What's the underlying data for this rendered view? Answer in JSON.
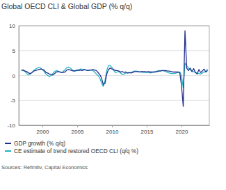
{
  "chart_data": {
    "type": "line",
    "title": "Global OECD CLI & Global GDP (% q/q)",
    "source": "Sources: Refinitiv, Capital Economics",
    "x": [
      1997,
      1997.25,
      1997.5,
      1997.75,
      1998,
      1998.25,
      1998.5,
      1998.75,
      1999,
      1999.25,
      1999.5,
      1999.75,
      2000,
      2000.25,
      2000.5,
      2000.75,
      2001,
      2001.25,
      2001.5,
      2001.75,
      2002,
      2002.25,
      2002.5,
      2002.75,
      2003,
      2003.25,
      2003.5,
      2003.75,
      2004,
      2004.25,
      2004.5,
      2004.75,
      2005,
      2005.25,
      2005.5,
      2005.75,
      2006,
      2006.25,
      2006.5,
      2006.75,
      2007,
      2007.25,
      2007.5,
      2007.75,
      2008,
      2008.25,
      2008.5,
      2008.75,
      2009,
      2009.25,
      2009.5,
      2009.75,
      2010,
      2010.25,
      2010.5,
      2010.75,
      2011,
      2011.25,
      2011.5,
      2011.75,
      2012,
      2012.25,
      2012.5,
      2012.75,
      2013,
      2013.25,
      2013.5,
      2013.75,
      2014,
      2014.25,
      2014.5,
      2014.75,
      2015,
      2015.25,
      2015.5,
      2015.75,
      2016,
      2016.25,
      2016.5,
      2016.75,
      2017,
      2017.25,
      2017.5,
      2017.75,
      2018,
      2018.25,
      2018.5,
      2018.75,
      2019,
      2019.25,
      2019.5,
      2019.75,
      2020,
      2020.25,
      2020.5,
      2020.75,
      2021,
      2021.25,
      2021.5,
      2021.75,
      2022,
      2022.25,
      2022.5,
      2022.75,
      2023,
      2023.25,
      2023.5,
      2023.75
    ],
    "series": [
      {
        "name": "GDP growth (% q/q)",
        "color": "#232f8c",
        "values": [
          1.0,
          1.1,
          0.9,
          0.8,
          0.5,
          0.4,
          0.6,
          0.9,
          1.0,
          1.1,
          1.2,
          1.3,
          1.2,
          1.1,
          0.6,
          0.5,
          0.3,
          0.2,
          0.1,
          0.4,
          0.7,
          0.8,
          0.7,
          0.6,
          0.6,
          0.7,
          1.1,
          1.2,
          1.1,
          1.0,
          0.9,
          1.0,
          1.1,
          1.0,
          1.1,
          1.0,
          1.2,
          1.1,
          1.0,
          1.1,
          1.1,
          1.2,
          1.1,
          1.0,
          0.6,
          0.2,
          -0.5,
          -1.8,
          -1.6,
          0.3,
          1.2,
          1.5,
          1.3,
          1.2,
          1.0,
          1.0,
          0.9,
          0.7,
          0.8,
          0.6,
          0.7,
          0.5,
          0.6,
          0.5,
          0.6,
          0.8,
          0.8,
          0.8,
          0.7,
          0.8,
          0.8,
          0.8,
          0.7,
          0.8,
          0.7,
          0.7,
          0.7,
          0.7,
          0.8,
          0.9,
          0.9,
          1.0,
          1.0,
          1.0,
          0.9,
          0.9,
          0.8,
          0.7,
          0.7,
          0.7,
          0.7,
          0.6,
          -2.0,
          -6.2,
          9.0,
          1.5,
          1.0,
          1.5,
          0.8,
          1.4,
          0.6,
          0.3,
          1.2,
          0.6,
          0.9,
          1.3,
          0.7,
          1.0
        ]
      },
      {
        "name": "CE estimate of trend restored OECD CLI (q/q %)",
        "color": "#22b5c3",
        "values": [
          1.2,
          1.0,
          0.8,
          0.4,
          0.1,
          0.3,
          0.6,
          1.0,
          1.3,
          1.5,
          1.6,
          1.5,
          1.2,
          0.8,
          0.3,
          0.0,
          -0.2,
          0.0,
          0.4,
          0.8,
          1.0,
          0.9,
          0.7,
          0.6,
          0.8,
          1.2,
          1.6,
          1.7,
          1.5,
          1.2,
          0.9,
          0.9,
          1.0,
          1.2,
          1.3,
          1.2,
          1.2,
          1.1,
          1.0,
          1.0,
          1.1,
          1.0,
          0.7,
          0.3,
          0.0,
          -0.5,
          -1.5,
          -2.2,
          -1.0,
          1.0,
          2.0,
          2.0,
          1.6,
          1.0,
          0.6,
          0.7,
          0.8,
          0.5,
          0.2,
          0.3,
          0.5,
          0.5,
          0.5,
          0.6,
          0.8,
          0.9,
          0.9,
          0.8,
          0.7,
          0.7,
          0.6,
          0.6,
          0.6,
          0.6,
          0.5,
          0.6,
          0.7,
          0.8,
          0.9,
          1.0,
          1.0,
          1.0,
          0.9,
          0.8,
          0.6,
          0.5,
          0.4,
          0.4,
          0.4,
          0.5,
          0.6,
          0.7,
          0.0,
          -2.5,
          2.5,
          2.0,
          1.5,
          1.2,
          0.8,
          0.8,
          0.6,
          0.5,
          0.4,
          0.3,
          0.5,
          0.7,
          0.8,
          1.3
        ]
      }
    ],
    "xlim": [
      1996.6,
      2024.0
    ],
    "xticks": [
      2000,
      2005,
      2010,
      2015,
      2020
    ],
    "ylim": [
      -10,
      10
    ],
    "yticks": [
      -10,
      -5,
      0,
      5,
      10
    ],
    "grid": true,
    "legend": "bottom"
  }
}
